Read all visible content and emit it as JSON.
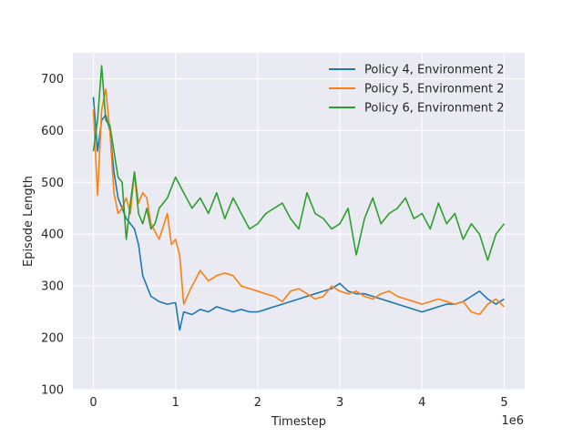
{
  "chart_data": {
    "type": "line",
    "xlabel": "Timestep",
    "ylabel": "Episode Length",
    "x_multiplier_label": "1e6",
    "xlim": [
      -0.25,
      5.25
    ],
    "ylim": [
      100,
      750
    ],
    "xticks": [
      0,
      1,
      2,
      3,
      4,
      5
    ],
    "xtick_labels": [
      "0",
      "1",
      "2",
      "3",
      "4",
      "5"
    ],
    "yticks": [
      100,
      200,
      300,
      400,
      500,
      600,
      700
    ],
    "ytick_labels": [
      "100",
      "200",
      "300",
      "400",
      "500",
      "600",
      "700"
    ],
    "grid": true,
    "legend_position": "top-right",
    "series": [
      {
        "name": "Policy 4, Environment 2",
        "color": "#1f77b4",
        "x": [
          0.0,
          0.05,
          0.1,
          0.15,
          0.2,
          0.25,
          0.3,
          0.35,
          0.4,
          0.45,
          0.5,
          0.55,
          0.6,
          0.65,
          0.7,
          0.8,
          0.9,
          1.0,
          1.05,
          1.1,
          1.2,
          1.3,
          1.4,
          1.5,
          1.6,
          1.7,
          1.8,
          1.9,
          2.0,
          2.1,
          2.2,
          2.3,
          2.4,
          2.5,
          2.6,
          2.7,
          2.8,
          2.9,
          3.0,
          3.1,
          3.2,
          3.3,
          3.4,
          3.5,
          3.6,
          3.7,
          3.8,
          3.9,
          4.0,
          4.1,
          4.2,
          4.3,
          4.4,
          4.5,
          4.6,
          4.7,
          4.8,
          4.9,
          5.0
        ],
        "values": [
          665,
          560,
          620,
          630,
          600,
          520,
          470,
          450,
          430,
          420,
          410,
          380,
          320,
          300,
          280,
          270,
          265,
          268,
          215,
          250,
          245,
          255,
          250,
          260,
          255,
          250,
          255,
          250,
          250,
          255,
          260,
          265,
          270,
          275,
          280,
          285,
          290,
          295,
          305,
          290,
          285,
          285,
          280,
          275,
          270,
          265,
          260,
          255,
          250,
          255,
          260,
          265,
          265,
          270,
          280,
          290,
          275,
          265,
          275
        ]
      },
      {
        "name": "Policy 5, Environment 2",
        "color": "#ff7f0e",
        "x": [
          0.0,
          0.05,
          0.1,
          0.15,
          0.2,
          0.25,
          0.3,
          0.35,
          0.4,
          0.45,
          0.5,
          0.55,
          0.6,
          0.65,
          0.7,
          0.8,
          0.9,
          0.95,
          1.0,
          1.05,
          1.1,
          1.2,
          1.3,
          1.4,
          1.5,
          1.6,
          1.7,
          1.8,
          1.9,
          2.0,
          2.1,
          2.2,
          2.3,
          2.4,
          2.5,
          2.6,
          2.7,
          2.8,
          2.9,
          3.0,
          3.1,
          3.2,
          3.3,
          3.4,
          3.5,
          3.6,
          3.7,
          3.8,
          3.9,
          4.0,
          4.1,
          4.2,
          4.3,
          4.4,
          4.5,
          4.6,
          4.7,
          4.8,
          4.9,
          5.0
        ],
        "values": [
          640,
          475,
          640,
          680,
          600,
          480,
          440,
          450,
          470,
          440,
          520,
          460,
          480,
          470,
          420,
          390,
          440,
          380,
          390,
          360,
          265,
          300,
          330,
          310,
          320,
          325,
          320,
          300,
          295,
          290,
          285,
          280,
          270,
          290,
          295,
          285,
          275,
          280,
          300,
          290,
          285,
          290,
          280,
          275,
          285,
          290,
          280,
          275,
          270,
          265,
          270,
          275,
          270,
          265,
          270,
          250,
          245,
          265,
          275,
          260
        ]
      },
      {
        "name": "Policy 6, Environment 2",
        "color": "#2ca02c",
        "x": [
          0.0,
          0.05,
          0.1,
          0.15,
          0.2,
          0.25,
          0.3,
          0.35,
          0.4,
          0.45,
          0.5,
          0.55,
          0.6,
          0.65,
          0.7,
          0.75,
          0.8,
          0.9,
          1.0,
          1.1,
          1.2,
          1.3,
          1.4,
          1.5,
          1.6,
          1.7,
          1.8,
          1.9,
          2.0,
          2.1,
          2.2,
          2.3,
          2.4,
          2.5,
          2.6,
          2.7,
          2.8,
          2.9,
          3.0,
          3.1,
          3.2,
          3.3,
          3.4,
          3.5,
          3.6,
          3.7,
          3.8,
          3.9,
          4.0,
          4.1,
          4.2,
          4.3,
          4.4,
          4.5,
          4.6,
          4.7,
          4.8,
          4.9,
          5.0
        ],
        "values": [
          560,
          620,
          725,
          620,
          610,
          560,
          510,
          500,
          390,
          460,
          520,
          440,
          420,
          450,
          410,
          420,
          450,
          470,
          510,
          480,
          450,
          470,
          440,
          480,
          430,
          470,
          440,
          410,
          420,
          440,
          450,
          460,
          430,
          410,
          480,
          440,
          430,
          410,
          420,
          450,
          360,
          430,
          470,
          420,
          440,
          450,
          470,
          430,
          440,
          410,
          460,
          420,
          440,
          390,
          420,
          400,
          350,
          400,
          420
        ]
      }
    ]
  }
}
